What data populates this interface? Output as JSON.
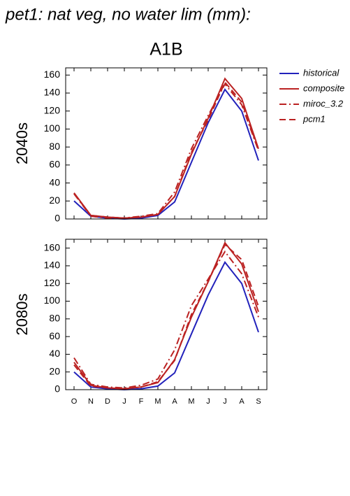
{
  "title": "pet1: nat veg, no water lim (mm):",
  "subtitle": "A1B",
  "chart_data": [
    {
      "type": "line",
      "ylabel": "2040s",
      "categories": [
        null,
        null,
        null,
        null,
        null,
        null,
        null,
        null,
        null,
        null,
        null,
        null
      ],
      "ylim": [
        0,
        168
      ],
      "yticks": [
        0,
        20,
        40,
        60,
        80,
        100,
        120,
        140,
        160
      ],
      "series": [
        {
          "name": "historical",
          "color": "#2222bb",
          "style": "solid",
          "values": [
            20,
            3,
            1,
            0,
            1,
            4,
            19,
            63,
            107,
            144,
            120,
            65
          ]
        },
        {
          "name": "composite",
          "color": "#bb2222",
          "style": "solid",
          "values": [
            29,
            4,
            2,
            1,
            2,
            5,
            25,
            72,
            112,
            156,
            134,
            78
          ]
        },
        {
          "name": "miroc_3.2",
          "color": "#bb2222",
          "style": "dashdot",
          "values": [
            28,
            3,
            1,
            1,
            3,
            6,
            30,
            78,
            115,
            150,
            127,
            76
          ]
        },
        {
          "name": "pcm1",
          "color": "#bb2222",
          "style": "dash",
          "values": [
            28,
            4,
            2,
            1,
            2,
            5,
            25,
            74,
            110,
            152,
            130,
            77
          ]
        }
      ]
    },
    {
      "type": "line",
      "ylabel": "2080s",
      "categories": [
        "O",
        "N",
        "D",
        "J",
        "F",
        "M",
        "A",
        "M",
        "J",
        "J",
        "A",
        "S"
      ],
      "ylim": [
        0,
        170
      ],
      "yticks": [
        0,
        20,
        40,
        60,
        80,
        100,
        120,
        140,
        160
      ],
      "series": [
        {
          "color": "#2222bb",
          "style": "solid",
          "values": [
            20,
            3,
            1,
            0,
            1,
            4,
            19,
            63,
            107,
            144,
            120,
            65
          ]
        },
        {
          "color": "#bb2222",
          "style": "solid",
          "values": [
            31,
            5,
            2,
            1,
            3,
            8,
            34,
            82,
            122,
            166,
            142,
            88
          ]
        },
        {
          "color": "#bb2222",
          "style": "dashdot",
          "values": [
            36,
            6,
            3,
            2,
            5,
            12,
            45,
            95,
            125,
            156,
            131,
            82
          ]
        },
        {
          "color": "#bb2222",
          "style": "dash",
          "values": [
            28,
            4,
            2,
            1,
            3,
            9,
            33,
            85,
            122,
            164,
            147,
            94
          ]
        }
      ]
    }
  ]
}
